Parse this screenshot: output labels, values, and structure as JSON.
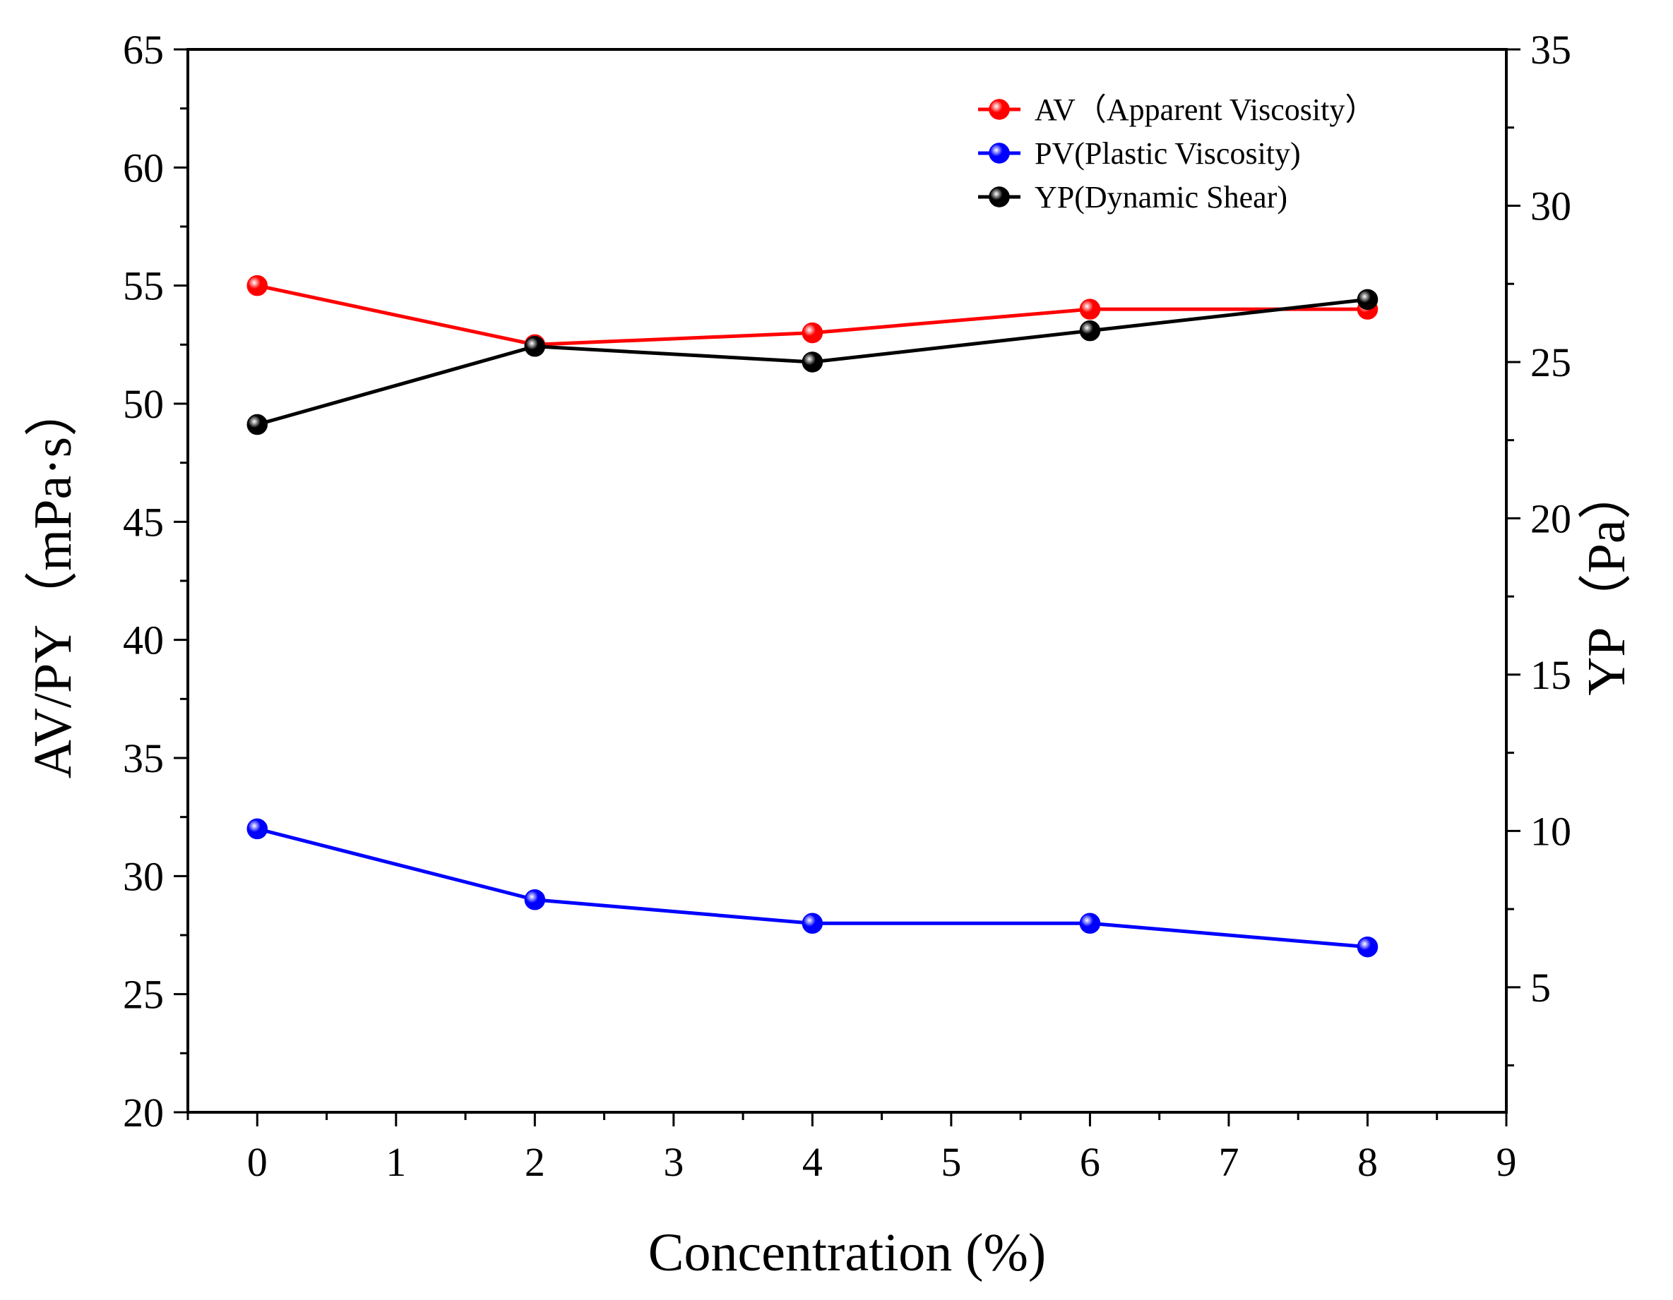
{
  "chart_data": {
    "type": "line",
    "title": "",
    "xlabel": "Concentration (%)",
    "ylabel_left": "AV/PY（mPa·s）",
    "ylabel_right": "YP（Pa）",
    "xlim": [
      -0.5,
      9
    ],
    "ylim_left": [
      20,
      65
    ],
    "ylim_right": [
      1.0,
      35
    ],
    "x_ticks": [
      0,
      1,
      2,
      3,
      4,
      5,
      6,
      7,
      8,
      9
    ],
    "y_left_ticks": [
      20,
      25,
      30,
      35,
      40,
      45,
      50,
      55,
      60,
      65
    ],
    "y_right_ticks": [
      5,
      10,
      15,
      20,
      25,
      30,
      35
    ],
    "legend_position": "top-right",
    "grid": false,
    "series": [
      {
        "name": "AV（Apparent Viscosity）",
        "axis": "left",
        "color": "#ff0000",
        "x": [
          0,
          2,
          4,
          6,
          8
        ],
        "values": [
          55,
          52.5,
          53,
          54,
          54
        ]
      },
      {
        "name": "PV(Plastic Viscosity)",
        "axis": "left",
        "color": "#0000ff",
        "x": [
          0,
          2,
          4,
          6,
          8
        ],
        "values": [
          32,
          29,
          28,
          28,
          27
        ]
      },
      {
        "name": "YP(Dynamic Shear)",
        "axis": "right",
        "color": "#000000",
        "x": [
          0,
          2,
          4,
          6,
          8
        ],
        "values": [
          23,
          25.5,
          25,
          26,
          27
        ]
      }
    ]
  }
}
